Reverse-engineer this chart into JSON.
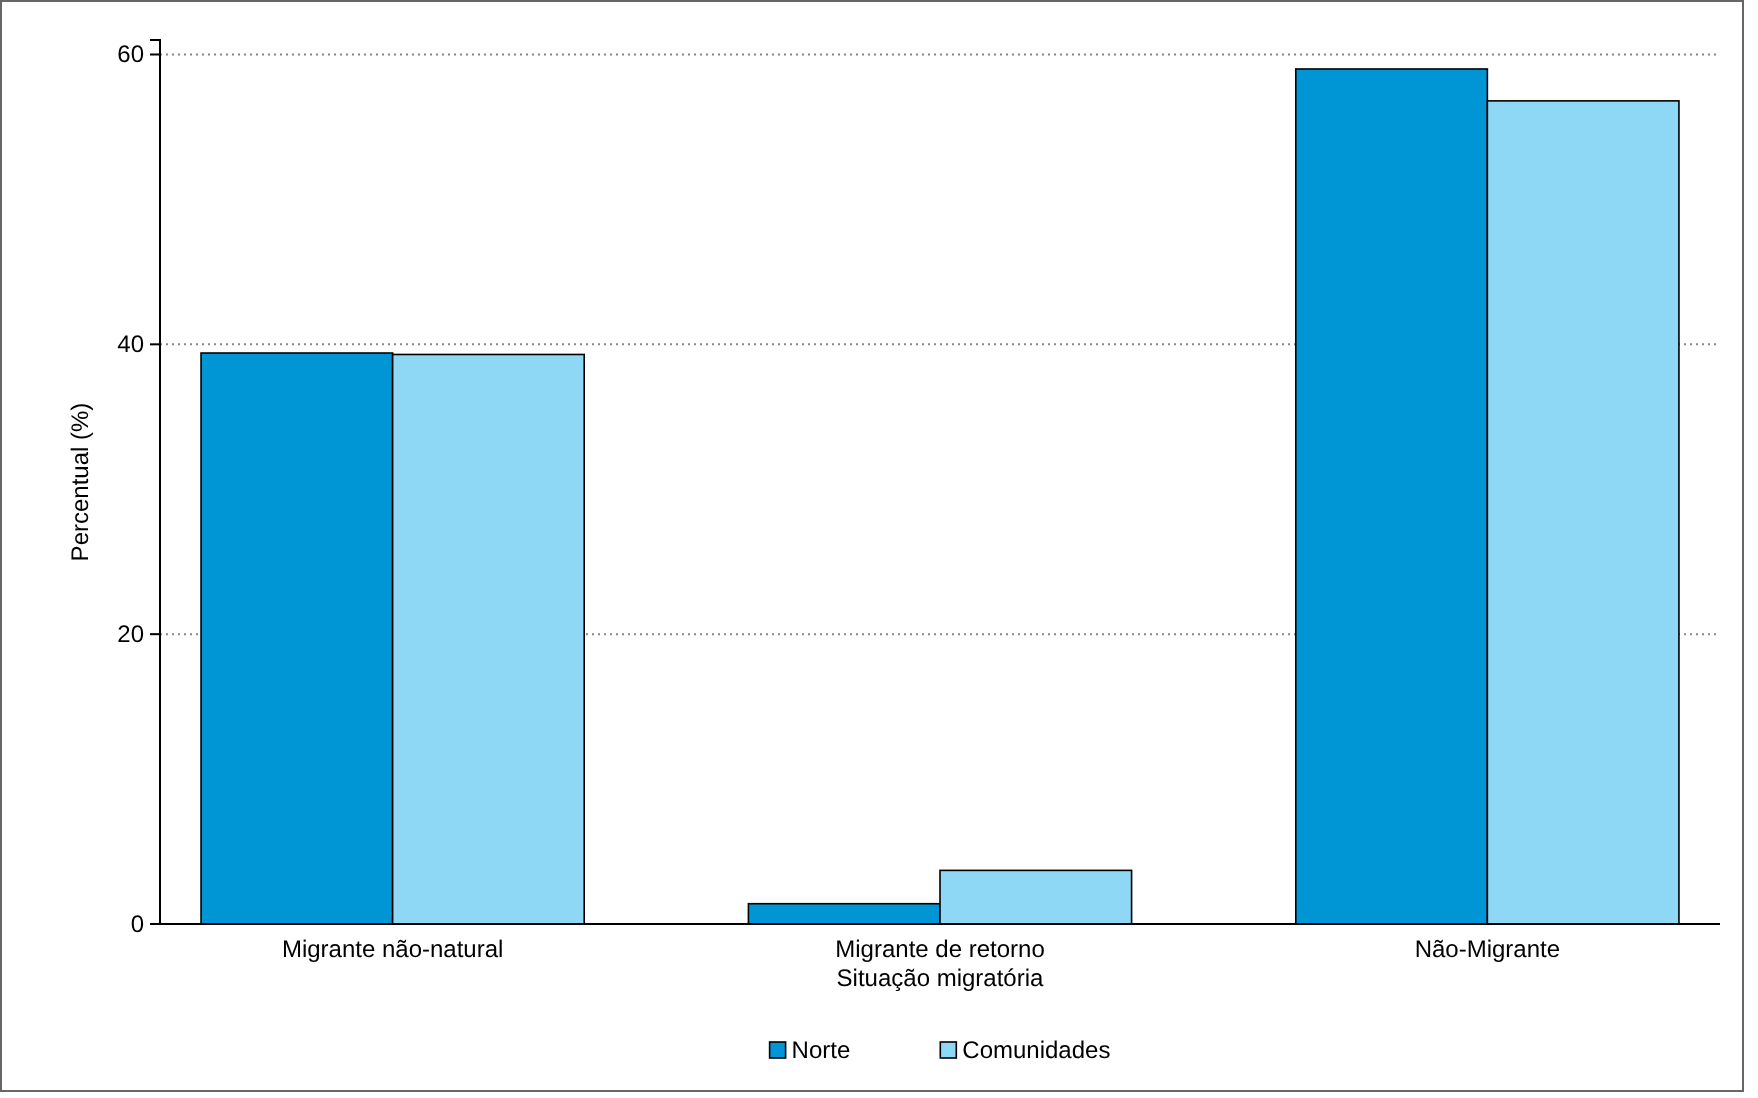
{
  "chart_data": {
    "type": "bar",
    "xlabel": "Situação migratória",
    "ylabel": "Percentual (%)",
    "categories": [
      "Migrante não-natural",
      "Migrante de retorno",
      "Não-Migrante"
    ],
    "series": [
      {
        "name": "Norte",
        "color": "#0096d6",
        "values": [
          39.4,
          1.4,
          59.0
        ]
      },
      {
        "name": "Comunidades",
        "color": "#8fd8f5",
        "values": [
          39.3,
          3.7,
          56.8
        ]
      }
    ],
    "ylim": [
      0,
      61
    ],
    "yticks": [
      0,
      20,
      40,
      60
    ],
    "grid": "y",
    "legend": "bottom"
  }
}
